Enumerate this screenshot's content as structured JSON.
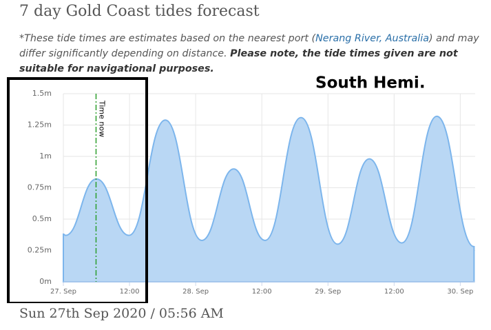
{
  "header": {
    "title": "7 day Gold Coast tides forecast"
  },
  "note": {
    "before": "*These tide times are estimates based on the nearest port (",
    "link": "Nerang River, Australia",
    "after": ") and may differ significantly depending on distance. ",
    "bold": "Please note, the tide times given are not suitable for navigational purposes."
  },
  "chart_data": {
    "type": "area",
    "annotation": "South Hemi.",
    "x": [
      0,
      0.4,
      6.0,
      11.9,
      18.5,
      25.1,
      30.9,
      36.6,
      43.1,
      49.75,
      55.5,
      61.4,
      67.75,
      74.5
    ],
    "values": [
      0.38,
      0.37,
      0.82,
      0.37,
      1.29,
      0.33,
      0.9,
      0.33,
      1.31,
      0.3,
      0.98,
      0.31,
      1.32,
      0.28
    ],
    "color": "#7cb5ec",
    "fill": "#b9d7f4",
    "xlim": [
      0,
      74.7
    ],
    "ylim": [
      0,
      1.5
    ],
    "xticks": [
      {
        "value": 0,
        "label": "27. Sep"
      },
      {
        "value": 12,
        "label": "12:00"
      },
      {
        "value": 24,
        "label": "28. Sep"
      },
      {
        "value": 36,
        "label": "12:00"
      },
      {
        "value": 48,
        "label": "29. Sep"
      },
      {
        "value": 60,
        "label": "12:00"
      },
      {
        "value": 72,
        "label": "30. Sep"
      }
    ],
    "yticks": [
      {
        "value": 0,
        "label": "0m"
      },
      {
        "value": 0.25,
        "label": "0.25m"
      },
      {
        "value": 0.5,
        "label": "0.5m"
      },
      {
        "value": 0.75,
        "label": "0.75m"
      },
      {
        "value": 1,
        "label": "1m"
      },
      {
        "value": 1.25,
        "label": "1.25m"
      },
      {
        "value": 1.5,
        "label": "1.5m"
      }
    ],
    "grid": true,
    "plot_line": {
      "label": "Time now",
      "x": 5.93,
      "color": "#2a9d2a"
    }
  },
  "footer": {
    "date": "Sun 27th Sep 2020 / 05:56 AM"
  }
}
